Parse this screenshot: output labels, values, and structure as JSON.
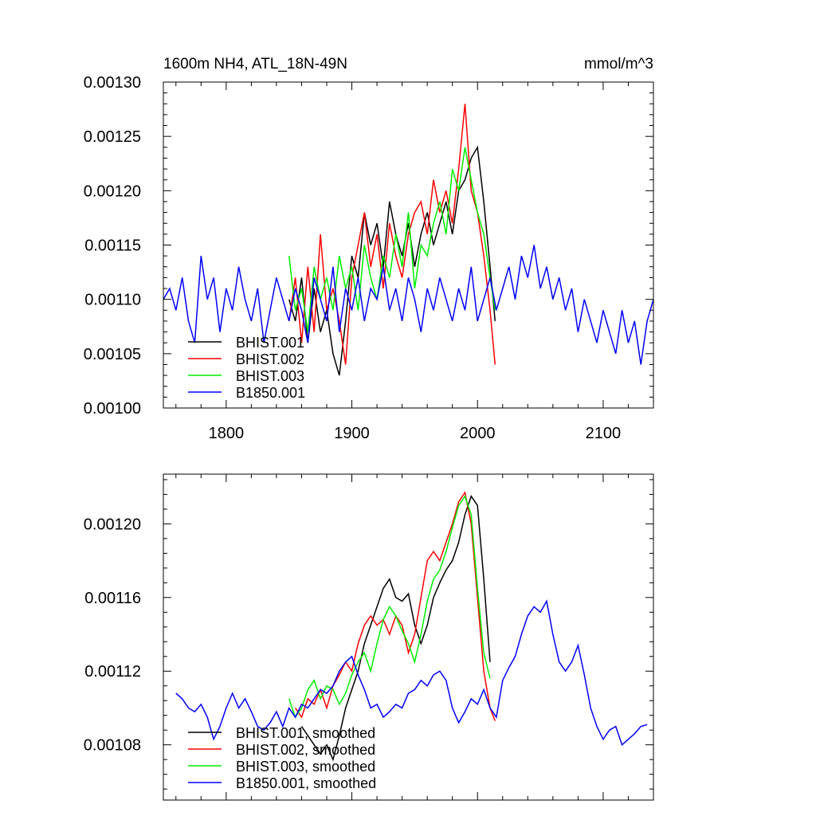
{
  "chart_data": [
    {
      "type": "line",
      "title": "1600m NH4, ATL_18N-49N",
      "units": "mmol/m^3",
      "xlabel": "",
      "ylabel": "",
      "xlim": [
        1750,
        2140
      ],
      "ylim": [
        0.001,
        0.0013
      ],
      "xticks": [
        1800,
        1900,
        2000,
        2100
      ],
      "xtick_labels": [
        "1800",
        "1900",
        "2000",
        "2100"
      ],
      "yticks": [
        0.001,
        0.00105,
        0.0011,
        0.00115,
        0.0012,
        0.00125,
        0.0013
      ],
      "ytick_labels": [
        "0.00100",
        "0.00105",
        "0.00110",
        "0.00115",
        "0.00120",
        "0.00125",
        "0.00130"
      ],
      "grid": false,
      "legend_position": "bottom-left",
      "series": [
        {
          "name": "BHIST.001",
          "color": "#000000",
          "x": [
            1850,
            1855,
            1860,
            1865,
            1870,
            1875,
            1880,
            1885,
            1890,
            1895,
            1900,
            1905,
            1910,
            1915,
            1920,
            1925,
            1930,
            1935,
            1940,
            1945,
            1950,
            1955,
            1960,
            1965,
            1970,
            1975,
            1980,
            1985,
            1990,
            1995,
            2000,
            2005,
            2010,
            2014
          ],
          "y": [
            0.0011,
            0.00108,
            0.00112,
            0.00106,
            0.00111,
            0.00107,
            0.00109,
            0.00105,
            0.00103,
            0.00108,
            0.00114,
            0.00112,
            0.00118,
            0.00115,
            0.00117,
            0.00113,
            0.00119,
            0.00116,
            0.00114,
            0.00117,
            0.00113,
            0.00116,
            0.00118,
            0.00115,
            0.00117,
            0.00119,
            0.00116,
            0.0012,
            0.00121,
            0.00123,
            0.00124,
            0.00119,
            0.00113,
            0.00108
          ]
        },
        {
          "name": "BHIST.002",
          "color": "#ff0000",
          "x": [
            1850,
            1855,
            1860,
            1865,
            1870,
            1875,
            1880,
            1885,
            1890,
            1895,
            1900,
            1905,
            1910,
            1915,
            1920,
            1925,
            1930,
            1935,
            1940,
            1945,
            1950,
            1955,
            1960,
            1965,
            1970,
            1975,
            1980,
            1985,
            1990,
            1995,
            2000,
            2005,
            2010,
            2014
          ],
          "y": [
            0.00108,
            0.00112,
            0.00106,
            0.00113,
            0.00107,
            0.00116,
            0.00109,
            0.00111,
            0.00108,
            0.00104,
            0.00112,
            0.00115,
            0.00118,
            0.00113,
            0.00116,
            0.00111,
            0.00117,
            0.00114,
            0.00112,
            0.00116,
            0.00118,
            0.00119,
            0.00116,
            0.00121,
            0.00118,
            0.0012,
            0.00117,
            0.00122,
            0.00128,
            0.0012,
            0.00118,
            0.00114,
            0.00109,
            0.00104
          ]
        },
        {
          "name": "BHIST.003",
          "color": "#00ee00",
          "x": [
            1850,
            1855,
            1860,
            1865,
            1870,
            1875,
            1880,
            1885,
            1890,
            1895,
            1900,
            1905,
            1910,
            1915,
            1920,
            1925,
            1930,
            1935,
            1940,
            1945,
            1950,
            1955,
            1960,
            1965,
            1970,
            1975,
            1980,
            1985,
            1990,
            1995,
            2000,
            2005,
            2010,
            2014
          ],
          "y": [
            0.00114,
            0.00109,
            0.00111,
            0.00107,
            0.00113,
            0.0011,
            0.00112,
            0.00109,
            0.00114,
            0.00111,
            0.00113,
            0.00109,
            0.00115,
            0.00112,
            0.0011,
            0.00114,
            0.00112,
            0.00116,
            0.00113,
            0.00118,
            0.00111,
            0.00115,
            0.00114,
            0.00117,
            0.00119,
            0.00116,
            0.00122,
            0.0012,
            0.00124,
            0.00121,
            0.00118,
            0.00116,
            0.00112,
            0.00109
          ]
        },
        {
          "name": "B1850.001",
          "color": "#0000ff",
          "x": [
            1750,
            1755,
            1760,
            1765,
            1770,
            1775,
            1780,
            1785,
            1790,
            1795,
            1800,
            1805,
            1810,
            1815,
            1820,
            1825,
            1830,
            1835,
            1840,
            1845,
            1850,
            1855,
            1860,
            1865,
            1870,
            1875,
            1880,
            1885,
            1890,
            1895,
            1900,
            1905,
            1910,
            1915,
            1920,
            1925,
            1930,
            1935,
            1940,
            1945,
            1950,
            1955,
            1960,
            1965,
            1970,
            1975,
            1980,
            1985,
            1990,
            1995,
            2000,
            2005,
            2010,
            2015,
            2020,
            2025,
            2030,
            2035,
            2040,
            2045,
            2050,
            2055,
            2060,
            2065,
            2070,
            2075,
            2080,
            2085,
            2090,
            2095,
            2100,
            2105,
            2110,
            2115,
            2120,
            2125,
            2130,
            2135,
            2140
          ],
          "y": [
            0.0011,
            0.00111,
            0.00109,
            0.00112,
            0.00108,
            0.00106,
            0.00114,
            0.0011,
            0.00112,
            0.00107,
            0.00111,
            0.00109,
            0.00113,
            0.0011,
            0.00108,
            0.00111,
            0.00106,
            0.00109,
            0.00112,
            0.0011,
            0.00108,
            0.00111,
            0.00109,
            0.00106,
            0.00112,
            0.0011,
            0.00108,
            0.00113,
            0.00107,
            0.00111,
            0.00109,
            0.00112,
            0.00108,
            0.00111,
            0.0011,
            0.00113,
            0.00109,
            0.00111,
            0.00108,
            0.00112,
            0.0011,
            0.00107,
            0.00111,
            0.00109,
            0.00112,
            0.0011,
            0.00108,
            0.00111,
            0.00109,
            0.00113,
            0.00108,
            0.0011,
            0.00112,
            0.00109,
            0.00111,
            0.00113,
            0.0011,
            0.00114,
            0.00112,
            0.00115,
            0.00111,
            0.00113,
            0.0011,
            0.00112,
            0.00109,
            0.00111,
            0.00107,
            0.0011,
            0.00108,
            0.00106,
            0.00109,
            0.00107,
            0.00105,
            0.00109,
            0.00106,
            0.00108,
            0.00104,
            0.00108,
            0.0011
          ]
        }
      ]
    },
    {
      "type": "line",
      "title": "",
      "xlabel": "",
      "ylabel": "",
      "xlim": [
        1750,
        2140
      ],
      "ylim": [
        0.00105,
        0.001227
      ],
      "xticks": [
        1800,
        1900,
        2000,
        2100
      ],
      "yticks": [
        0.00108,
        0.00112,
        0.00116,
        0.0012
      ],
      "ytick_labels": [
        "0.00108",
        "0.00112",
        "0.00116",
        "0.00120"
      ],
      "grid": false,
      "legend_position": "bottom-left",
      "series": [
        {
          "name": "BHIST.001, smoothed",
          "color": "#000000",
          "x": [
            1860,
            1865,
            1870,
            1875,
            1880,
            1885,
            1890,
            1895,
            1900,
            1905,
            1910,
            1915,
            1920,
            1925,
            1930,
            1935,
            1940,
            1945,
            1950,
            1955,
            1960,
            1965,
            1970,
            1975,
            1980,
            1985,
            1990,
            1995,
            2000,
            2005,
            2010
          ],
          "y": [
            0.00109,
            0.001085,
            0.00108,
            0.001075,
            0.00108,
            0.001072,
            0.001085,
            0.0011,
            0.00111,
            0.00112,
            0.001135,
            0.001145,
            0.001155,
            0.001165,
            0.00117,
            0.00116,
            0.001158,
            0.001162,
            0.001145,
            0.001135,
            0.001145,
            0.00116,
            0.001168,
            0.001175,
            0.00118,
            0.00119,
            0.001205,
            0.001215,
            0.00121,
            0.00117,
            0.001125
          ]
        },
        {
          "name": "BHIST.002, smoothed",
          "color": "#ff0000",
          "x": [
            1855,
            1860,
            1865,
            1870,
            1875,
            1880,
            1885,
            1890,
            1895,
            1900,
            1905,
            1910,
            1915,
            1920,
            1925,
            1930,
            1935,
            1940,
            1945,
            1950,
            1955,
            1960,
            1965,
            1970,
            1975,
            1980,
            1985,
            1990,
            1995,
            2000,
            2005,
            2010,
            2014
          ],
          "y": [
            0.0011,
            0.001095,
            0.001105,
            0.001102,
            0.00111,
            0.0011,
            0.001112,
            0.001118,
            0.001125,
            0.00112,
            0.001135,
            0.001145,
            0.00115,
            0.001145,
            0.001148,
            0.00114,
            0.00115,
            0.001145,
            0.00113,
            0.00114,
            0.00116,
            0.00118,
            0.001185,
            0.00118,
            0.00119,
            0.0012,
            0.001212,
            0.001217,
            0.0012,
            0.00116,
            0.00112,
            0.0011,
            0.001093
          ]
        },
        {
          "name": "BHIST.003, smoothed",
          "color": "#00ee00",
          "x": [
            1850,
            1855,
            1860,
            1865,
            1870,
            1875,
            1880,
            1885,
            1890,
            1895,
            1900,
            1905,
            1910,
            1915,
            1920,
            1925,
            1930,
            1935,
            1940,
            1945,
            1950,
            1955,
            1960,
            1965,
            1970,
            1975,
            1980,
            1985,
            1990,
            1995,
            2000,
            2005,
            2010
          ],
          "y": [
            0.001105,
            0.001095,
            0.0011,
            0.00111,
            0.001115,
            0.001105,
            0.001112,
            0.00111,
            0.001102,
            0.001108,
            0.001118,
            0.001125,
            0.00113,
            0.00112,
            0.001135,
            0.001148,
            0.001155,
            0.00115,
            0.001142,
            0.001135,
            0.001125,
            0.00114,
            0.001158,
            0.00117,
            0.001175,
            0.001185,
            0.001198,
            0.00121,
            0.001215,
            0.001205,
            0.001165,
            0.00113,
            0.001116
          ]
        },
        {
          "name": "B1850.001, smoothed",
          "color": "#0000ff",
          "x": [
            1760,
            1765,
            1770,
            1775,
            1780,
            1785,
            1790,
            1795,
            1800,
            1805,
            1810,
            1815,
            1820,
            1825,
            1830,
            1835,
            1840,
            1845,
            1850,
            1855,
            1860,
            1865,
            1870,
            1875,
            1880,
            1885,
            1890,
            1895,
            1900,
            1905,
            1910,
            1915,
            1920,
            1925,
            1930,
            1935,
            1940,
            1945,
            1950,
            1955,
            1960,
            1965,
            1970,
            1975,
            1980,
            1985,
            1990,
            1995,
            2000,
            2005,
            2010,
            2015,
            2020,
            2025,
            2030,
            2035,
            2040,
            2045,
            2050,
            2055,
            2060,
            2065,
            2070,
            2075,
            2080,
            2085,
            2090,
            2095,
            2100,
            2105,
            2110,
            2115,
            2120,
            2125,
            2130,
            2135
          ],
          "y": [
            0.001108,
            0.001105,
            0.0011,
            0.001098,
            0.001102,
            0.001095,
            0.001083,
            0.00109,
            0.0011,
            0.001108,
            0.0011,
            0.001105,
            0.001098,
            0.00109,
            0.001088,
            0.001092,
            0.001098,
            0.00109,
            0.0011,
            0.001095,
            0.001102,
            0.0011,
            0.001105,
            0.00111,
            0.001108,
            0.001112,
            0.00112,
            0.001125,
            0.001128,
            0.001118,
            0.00111,
            0.0011,
            0.001102,
            0.001095,
            0.001098,
            0.001102,
            0.0011,
            0.001108,
            0.00111,
            0.001115,
            0.001112,
            0.001118,
            0.00112,
            0.001115,
            0.0011,
            0.001092,
            0.001098,
            0.001105,
            0.001102,
            0.00111,
            0.0011,
            0.001095,
            0.001115,
            0.001122,
            0.001128,
            0.00114,
            0.00115,
            0.001155,
            0.001152,
            0.001158,
            0.00114,
            0.001125,
            0.00112,
            0.001125,
            0.001134,
            0.001118,
            0.0011,
            0.00109,
            0.001083,
            0.001088,
            0.00109,
            0.00108,
            0.001083,
            0.001086,
            0.00109,
            0.001091
          ]
        }
      ]
    }
  ]
}
